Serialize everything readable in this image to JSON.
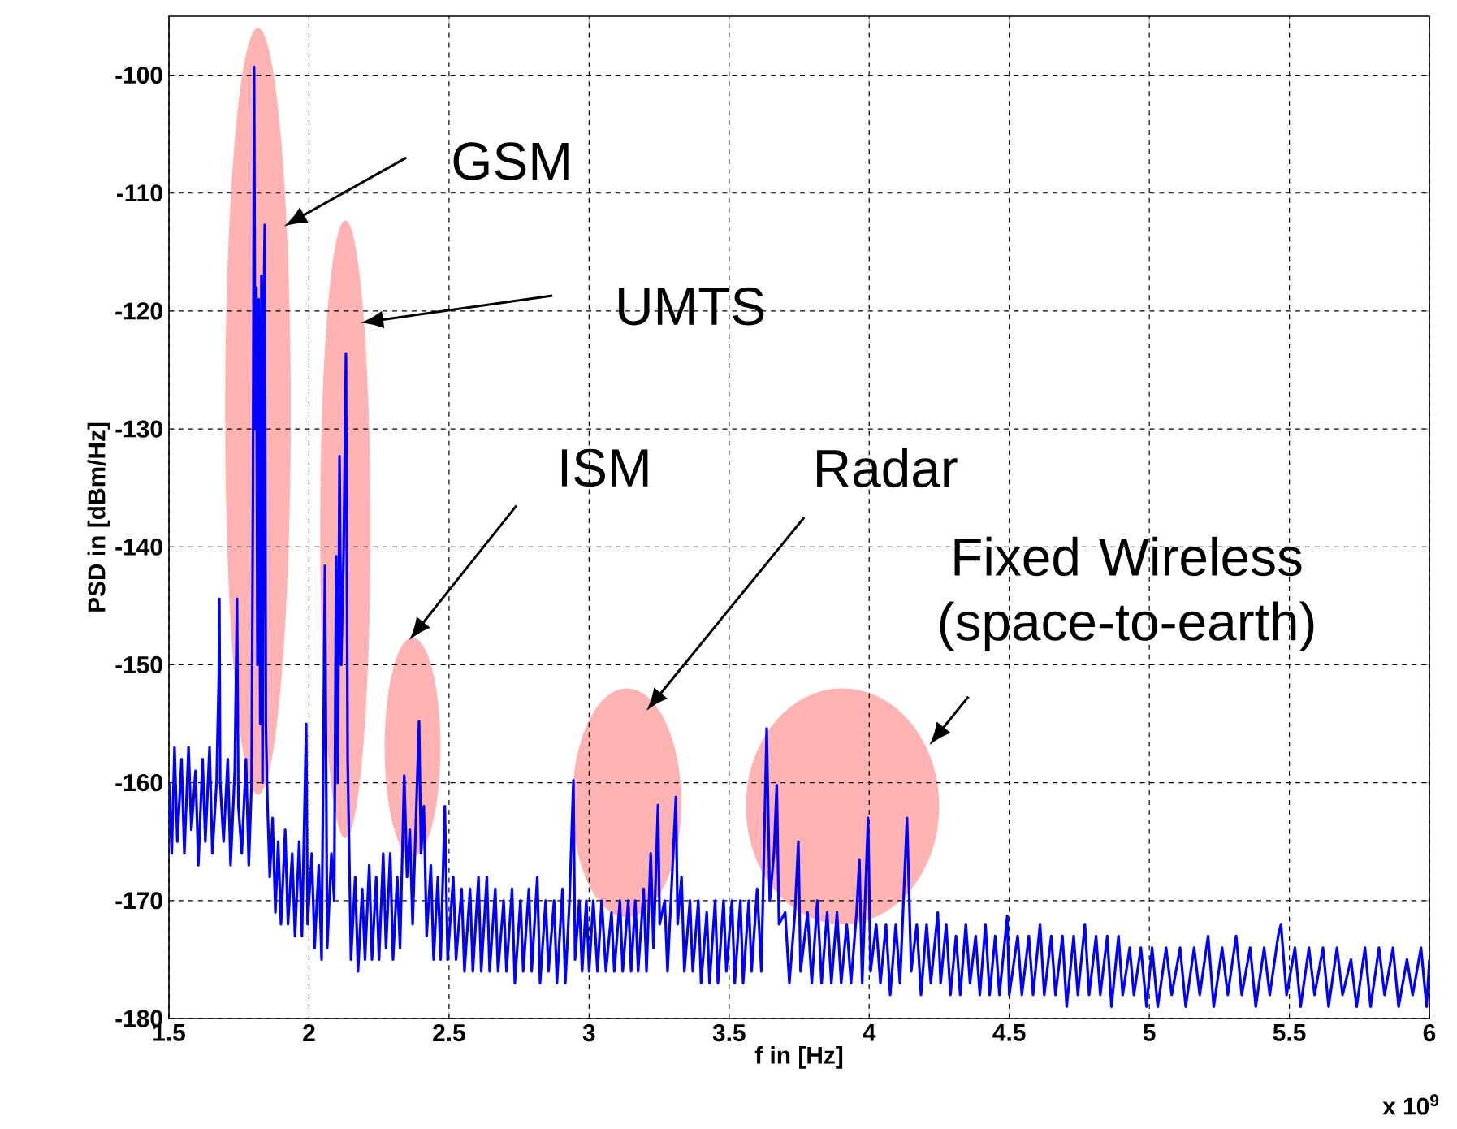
{
  "chart_data": {
    "type": "line",
    "xlabel": "f in [Hz]",
    "ylabel": "PSD in [dBm/Hz]",
    "xlim": [
      1.5,
      6
    ],
    "ylim": [
      -180,
      -95
    ],
    "xticks": [
      1.5,
      2,
      2.5,
      3,
      3.5,
      4,
      4.5,
      5,
      5.5,
      6
    ],
    "yticks": [
      -180,
      -170,
      -160,
      -150,
      -140,
      -130,
      -120,
      -110,
      -100
    ],
    "grid": true,
    "marker": "none",
    "series": [
      {
        "color": "#0000ff",
        "x": [
          1.5,
          1.51,
          1.52,
          1.53,
          1.545,
          1.555,
          1.57,
          1.58,
          1.595,
          1.605,
          1.62,
          1.63,
          1.645,
          1.655,
          1.67,
          1.678,
          1.68,
          1.683,
          1.695,
          1.71,
          1.72,
          1.735,
          1.743,
          1.748,
          1.76,
          1.775,
          1.785,
          1.795,
          1.8,
          1.804,
          1.808,
          1.812,
          1.816,
          1.82,
          1.826,
          1.83,
          1.834,
          1.838,
          1.842,
          1.846,
          1.852,
          1.86,
          1.87,
          1.88,
          1.89,
          1.9,
          1.915,
          1.925,
          1.94,
          1.95,
          1.965,
          1.975,
          1.99,
          1.995,
          2.01,
          2.02,
          2.035,
          2.045,
          2.057,
          2.065,
          2.08,
          2.09,
          2.097,
          2.103,
          2.109,
          2.115,
          2.124,
          2.132,
          2.138,
          2.15,
          2.165,
          2.175,
          2.19,
          2.2,
          2.215,
          2.225,
          2.24,
          2.25,
          2.265,
          2.275,
          2.29,
          2.3,
          2.315,
          2.325,
          2.34,
          2.35,
          2.36,
          2.37,
          2.393,
          2.4,
          2.41,
          2.42,
          2.435,
          2.445,
          2.46,
          2.47,
          2.485,
          2.495,
          2.515,
          2.525,
          2.545,
          2.555,
          2.575,
          2.585,
          2.605,
          2.615,
          2.635,
          2.645,
          2.665,
          2.675,
          2.695,
          2.705,
          2.725,
          2.735,
          2.755,
          2.765,
          2.785,
          2.795,
          2.815,
          2.825,
          2.845,
          2.855,
          2.875,
          2.885,
          2.905,
          2.915,
          2.93,
          2.944,
          2.95,
          2.965,
          2.975,
          2.99,
          3.0,
          3.015,
          3.03,
          3.045,
          3.06,
          3.08,
          3.09,
          3.11,
          3.12,
          3.14,
          3.15,
          3.165,
          3.175,
          3.195,
          3.205,
          3.22,
          3.23,
          3.246,
          3.252,
          3.27,
          3.28,
          3.31,
          3.316,
          3.33,
          3.34,
          3.36,
          3.37,
          3.39,
          3.4,
          3.42,
          3.43,
          3.45,
          3.46,
          3.48,
          3.49,
          3.51,
          3.52,
          3.54,
          3.55,
          3.57,
          3.58,
          3.6,
          3.615,
          3.634,
          3.645,
          3.66,
          3.67,
          3.678,
          3.7,
          3.715,
          3.735,
          3.747,
          3.755,
          3.78,
          3.795,
          3.815,
          3.83,
          3.85,
          3.865,
          3.885,
          3.9,
          3.92,
          3.935,
          3.955,
          3.965,
          3.975,
          3.996,
          4.005,
          4.025,
          4.04,
          4.06,
          4.075,
          4.095,
          4.11,
          4.135,
          4.15,
          4.17,
          4.185,
          4.205,
          4.22,
          4.245,
          4.255,
          4.275,
          4.29,
          4.31,
          4.325,
          4.345,
          4.36,
          4.38,
          4.395,
          4.415,
          4.43,
          4.45,
          4.465,
          4.493,
          4.5,
          4.53,
          4.545,
          4.57,
          4.585,
          4.61,
          4.625,
          4.65,
          4.665,
          4.69,
          4.705,
          4.73,
          4.745,
          4.77,
          4.785,
          4.81,
          4.825,
          4.85,
          4.865,
          4.89,
          4.905,
          4.93,
          4.945,
          4.97,
          4.99,
          5.01,
          5.03,
          5.06,
          5.08,
          5.11,
          5.13,
          5.16,
          5.18,
          5.21,
          5.23,
          5.26,
          5.28,
          5.31,
          5.33,
          5.36,
          5.38,
          5.41,
          5.43,
          5.46,
          5.47,
          5.49,
          5.52,
          5.54,
          5.57,
          5.59,
          5.62,
          5.64,
          5.67,
          5.69,
          5.72,
          5.74,
          5.77,
          5.79,
          5.82,
          5.84,
          5.87,
          5.89,
          5.92,
          5.94,
          5.97,
          5.99,
          6.0
        ],
        "values": [
          -160,
          -166,
          -157,
          -165,
          -158,
          -166,
          -157,
          -164,
          -159,
          -167,
          -158,
          -165,
          -157,
          -166,
          -160,
          -151,
          -144.4,
          -160,
          -165,
          -158,
          -167,
          -159,
          -144.4,
          -162,
          -166,
          -158,
          -167,
          -160,
          -135,
          -99.3,
          -130,
          -118,
          -150,
          -119,
          -155,
          -117,
          -160,
          -121,
          -112.7,
          -155,
          -162,
          -168,
          -163,
          -171,
          -165,
          -172,
          -164,
          -172,
          -166,
          -173,
          -165,
          -173,
          -155,
          -172,
          -166,
          -174,
          -167,
          -175,
          -141.6,
          -174,
          -166,
          -170,
          -140.8,
          -160,
          -132.3,
          -150,
          -140,
          -123.6,
          -158,
          -175,
          -168,
          -176,
          -169,
          -175,
          -167,
          -175,
          -168,
          -175,
          -166,
          -174,
          -166,
          -175,
          -168,
          -174,
          -159.4,
          -168,
          -164,
          -172,
          -154.8,
          -166,
          -162,
          -173,
          -167,
          -175,
          -168,
          -175,
          -162,
          -175,
          -168,
          -175,
          -169,
          -176,
          -169,
          -176,
          -168,
          -176,
          -168,
          -176,
          -169,
          -176,
          -170,
          -176,
          -169,
          -177,
          -170,
          -176,
          -169,
          -176,
          -168,
          -177,
          -170,
          -176,
          -170,
          -177,
          -169,
          -177,
          -170,
          -159.8,
          -175,
          -170,
          -176,
          -170,
          -176,
          -170,
          -176,
          -170,
          -176,
          -171,
          -176,
          -170,
          -176,
          -170,
          -176,
          -170,
          -176,
          -169,
          -176,
          -166,
          -174,
          -161.9,
          -172,
          -170,
          -176,
          -161.2,
          -172,
          -168,
          -176,
          -170,
          -176,
          -170,
          -177,
          -171,
          -177,
          -170,
          -177,
          -170,
          -176,
          -170,
          -177,
          -170,
          -177,
          -170,
          -176,
          -169,
          -176,
          -155.4,
          -170,
          -166,
          -160.2,
          -172,
          -171,
          -177,
          -171,
          -165,
          -176,
          -171,
          -177,
          -170,
          -177,
          -171,
          -177,
          -171,
          -177,
          -172,
          -177,
          -171,
          -166.5,
          -177,
          -163,
          -176,
          -172,
          -177,
          -172,
          -178,
          -172,
          -177,
          -163,
          -176,
          -172,
          -178,
          -172,
          -177,
          -171,
          -177,
          -172,
          -178,
          -173,
          -178,
          -172,
          -177,
          -173,
          -178,
          -172,
          -178,
          -173,
          -178,
          -171.3,
          -178,
          -173,
          -178,
          -173,
          -178,
          -172,
          -178,
          -173,
          -178,
          -173,
          -179,
          -173,
          -178,
          -172,
          -178,
          -173,
          -178,
          -173,
          -179,
          -173,
          -178,
          -174,
          -178,
          -174,
          -179,
          -174,
          -179,
          -174,
          -178,
          -174,
          -179,
          -174,
          -178,
          -173,
          -179,
          -174,
          -178,
          -173,
          -178,
          -174,
          -179,
          -174,
          -178,
          -173,
          -172,
          -178,
          -174,
          -179,
          -174,
          -178,
          -174,
          -179,
          -174,
          -178,
          -175,
          -179,
          -174,
          -179,
          -174,
          -178,
          -174,
          -179,
          -175,
          -178,
          -174,
          -179,
          -175
        ]
      }
    ],
    "annotations": [
      "GSM",
      "UMTS",
      "ISM",
      "Radar",
      "Fixed Wireless (space-to-earth)",
      "x 10$^{9}$"
    ]
  }
}
